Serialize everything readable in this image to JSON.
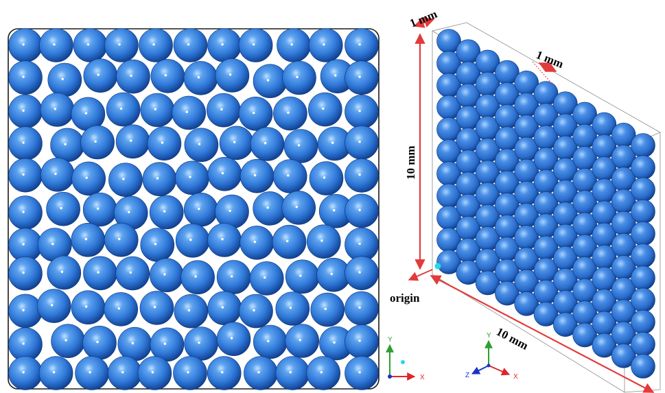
{
  "colors": {
    "sphere": "#2f78d8",
    "sphere_dark": "#103f8f",
    "sphere_light": "#bfe0ff",
    "dimension": "#e23b3b",
    "axis_x": "#e0242c",
    "axis_y": "#2ca02c",
    "axis_z": "#1a33c8",
    "origin_marker": "#25d9e6"
  },
  "labels": {
    "depth": "1 mm",
    "spacing": "1 mm",
    "height": "10 mm",
    "width": "10 mm",
    "origin": "origin"
  },
  "axes_left": {
    "x": "X",
    "y": "Y"
  },
  "axes_right": {
    "x": "X",
    "y": "Y",
    "z": "Z"
  }
}
